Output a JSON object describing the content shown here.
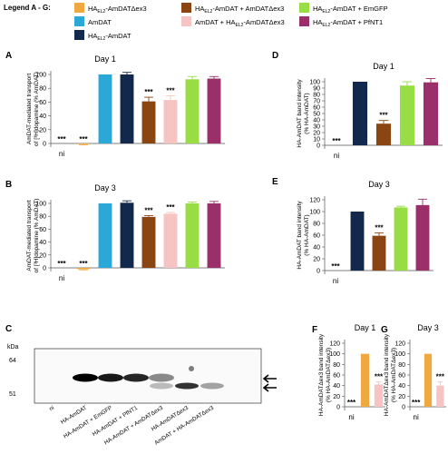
{
  "legend": {
    "title": "Legend A - G:",
    "items": [
      {
        "text": "HAₑₗ₂-AmDATΔex3",
        "sub": "EL2",
        "main": "HA",
        "rest": "-AmDATΔex3",
        "color": "#f0a840"
      },
      {
        "text": "HA-AmDAT + AmDATΔex3",
        "main": "HA",
        "sub": "EL2",
        "rest": "-AmDAT + AmDATΔex3",
        "color": "#8b4513"
      },
      {
        "text": "HA-AmDAT + EmGFP",
        "main": "HA",
        "sub": "EL2",
        "rest": "-AmDAT + EmGFP",
        "color": "#99dd44"
      },
      {
        "text": "AmDAT",
        "main": "AmDAT",
        "sub": "",
        "rest": "",
        "color": "#2aa8d8"
      },
      {
        "text": "AmDAT + HA-AmDATΔex3",
        "main": "AmDAT + HA",
        "sub": "EL2",
        "rest": "-AmDATΔex3",
        "color": "#f6c4c2"
      },
      {
        "text": "HA-AmDAT + PfNT1",
        "main": "HA",
        "sub": "EL2",
        "rest": "-AmDAT + PfNT1",
        "color": "#9b2f6a"
      },
      {
        "text": "HA-AmDAT",
        "main": "HA",
        "sub": "EL2",
        "rest": "-AmDAT",
        "color": "#13284d"
      }
    ]
  },
  "colors": {
    "ni": "#999999",
    "dex3": "#f0a840",
    "amdat": "#2aa8d8",
    "ha_amdat": "#13284d",
    "plus_dex3": "#8b4513",
    "amdat_plus_hadex3": "#f6c4c2",
    "plus_emgfp": "#99dd44",
    "plus_pfnt1": "#9b2f6a"
  },
  "chart_data": [
    {
      "panel": "A",
      "type": "bar",
      "title": "Day 1",
      "ylabel": "AmDAT-mediated transport of [³H]dopamine (% AmDAT)",
      "ylim": [
        0,
        100
      ],
      "yticks": [
        0,
        20,
        40,
        60,
        80,
        100
      ],
      "xlabel_text": "ni",
      "bars": [
        {
          "group": "ni",
          "value": 0,
          "err": 0,
          "sig": "***"
        },
        {
          "group": "dex3",
          "value": -1,
          "err": 1,
          "sig": "***"
        },
        {
          "group": "amdat",
          "value": 100,
          "err": 0,
          "sig": ""
        },
        {
          "group": "ha_amdat",
          "value": 100,
          "err": 3,
          "sig": ""
        },
        {
          "group": "plus_dex3",
          "value": 61,
          "err": 6,
          "sig": "***"
        },
        {
          "group": "amdat_plus_hadex3",
          "value": 63,
          "err": 6,
          "sig": "***"
        },
        {
          "group": "plus_emgfp",
          "value": 93,
          "err": 4,
          "sig": ""
        },
        {
          "group": "plus_pfnt1",
          "value": 94,
          "err": 3,
          "sig": ""
        }
      ]
    },
    {
      "panel": "B",
      "type": "bar",
      "title": "Day 3",
      "ylabel": "AmDAT-mediated transport of [³H]dopamine (% AmDAT)",
      "ylim": [
        0,
        100
      ],
      "yticks": [
        0,
        20,
        40,
        60,
        80,
        100
      ],
      "xlabel_text": "ni",
      "bars": [
        {
          "group": "ni",
          "value": 0,
          "err": 0,
          "sig": "***"
        },
        {
          "group": "dex3",
          "value": -2,
          "err": 1,
          "sig": "***"
        },
        {
          "group": "amdat",
          "value": 100,
          "err": 0,
          "sig": ""
        },
        {
          "group": "ha_amdat",
          "value": 101,
          "err": 3,
          "sig": ""
        },
        {
          "group": "plus_dex3",
          "value": 79,
          "err": 2,
          "sig": "***"
        },
        {
          "group": "amdat_plus_hadex3",
          "value": 84,
          "err": 2,
          "sig": "***"
        },
        {
          "group": "plus_emgfp",
          "value": 100,
          "err": 2,
          "sig": ""
        },
        {
          "group": "plus_pfnt1",
          "value": 100,
          "err": 3,
          "sig": ""
        }
      ]
    },
    {
      "panel": "D",
      "type": "bar",
      "title": "Day 1",
      "ylabel": "HA-AmDAT band intensity (% HA-AmDAT)",
      "ylim": [
        0,
        100
      ],
      "yticks": [
        0,
        10,
        20,
        30,
        40,
        50,
        60,
        70,
        80,
        90,
        100
      ],
      "xlabel_text": "ni",
      "bars": [
        {
          "group": "ni",
          "value": 0,
          "err": 0,
          "sig": "***"
        },
        {
          "group": "ha_amdat",
          "value": 100,
          "err": 0,
          "sig": ""
        },
        {
          "group": "plus_dex3",
          "value": 34,
          "err": 5,
          "sig": "***"
        },
        {
          "group": "plus_emgfp",
          "value": 94,
          "err": 6,
          "sig": ""
        },
        {
          "group": "plus_pfnt1",
          "value": 99,
          "err": 6,
          "sig": ""
        }
      ]
    },
    {
      "panel": "E",
      "type": "bar",
      "title": "Day 3",
      "ylabel": "HA-AmDAT band intensity (% HA-AmDAT)",
      "ylim": [
        0,
        120
      ],
      "yticks": [
        0,
        20,
        40,
        60,
        80,
        100,
        120
      ],
      "xlabel_text": "ni",
      "bars": [
        {
          "group": "ni",
          "value": 0,
          "err": 0,
          "sig": "***"
        },
        {
          "group": "ha_amdat",
          "value": 100,
          "err": 0,
          "sig": ""
        },
        {
          "group": "plus_dex3",
          "value": 59,
          "err": 5,
          "sig": "***"
        },
        {
          "group": "plus_emgfp",
          "value": 107,
          "err": 2,
          "sig": ""
        },
        {
          "group": "plus_pfnt1",
          "value": 111,
          "err": 10,
          "sig": ""
        }
      ]
    },
    {
      "panel": "F",
      "type": "bar",
      "title": "Day 1",
      "ylabel": "HA-AmDATΔex3 band intensity (% HA-AmDATΔex3)",
      "ylim": [
        0,
        120
      ],
      "yticks": [
        0,
        20,
        40,
        60,
        80,
        100,
        120
      ],
      "xlabel_text": "ni",
      "bars": [
        {
          "group": "ni",
          "value": 0,
          "err": 0,
          "sig": "***"
        },
        {
          "group": "dex3",
          "value": 100,
          "err": 0,
          "sig": ""
        },
        {
          "group": "amdat_plus_hadex3",
          "value": 42,
          "err": 5,
          "sig": "***"
        }
      ]
    },
    {
      "panel": "G",
      "type": "bar",
      "title": "Day 3",
      "ylabel": "HA-AmDATΔex3 band intensity (% HA-AmDATΔex3)",
      "ylim": [
        0,
        120
      ],
      "yticks": [
        0,
        20,
        40,
        60,
        80,
        100,
        120
      ],
      "xlabel_text": "ni",
      "bars": [
        {
          "group": "ni",
          "value": 0,
          "err": 0,
          "sig": "***"
        },
        {
          "group": "dex3",
          "value": 100,
          "err": 0,
          "sig": ""
        },
        {
          "group": "amdat_plus_hadex3",
          "value": 40,
          "err": 7,
          "sig": "***"
        }
      ]
    }
  ],
  "blot": {
    "panel": "C",
    "kda_label": "kDa",
    "markers": [
      "64",
      "51"
    ],
    "lanes": [
      "ni",
      "HA-AmDAT",
      "HA-AmDAT + EmGFP",
      "HA-AmDAT + PfNT1",
      "HA-AmDAT + AmDATΔex3",
      "HA-AmDATΔex3",
      "AmDAT + HA-AmDATΔex3"
    ],
    "band_upper_intensity": [
      0,
      1.0,
      0.9,
      0.85,
      0.45,
      0,
      0
    ],
    "band_lower_intensity": [
      0,
      0,
      0,
      0,
      0.25,
      0.8,
      0.35
    ]
  }
}
